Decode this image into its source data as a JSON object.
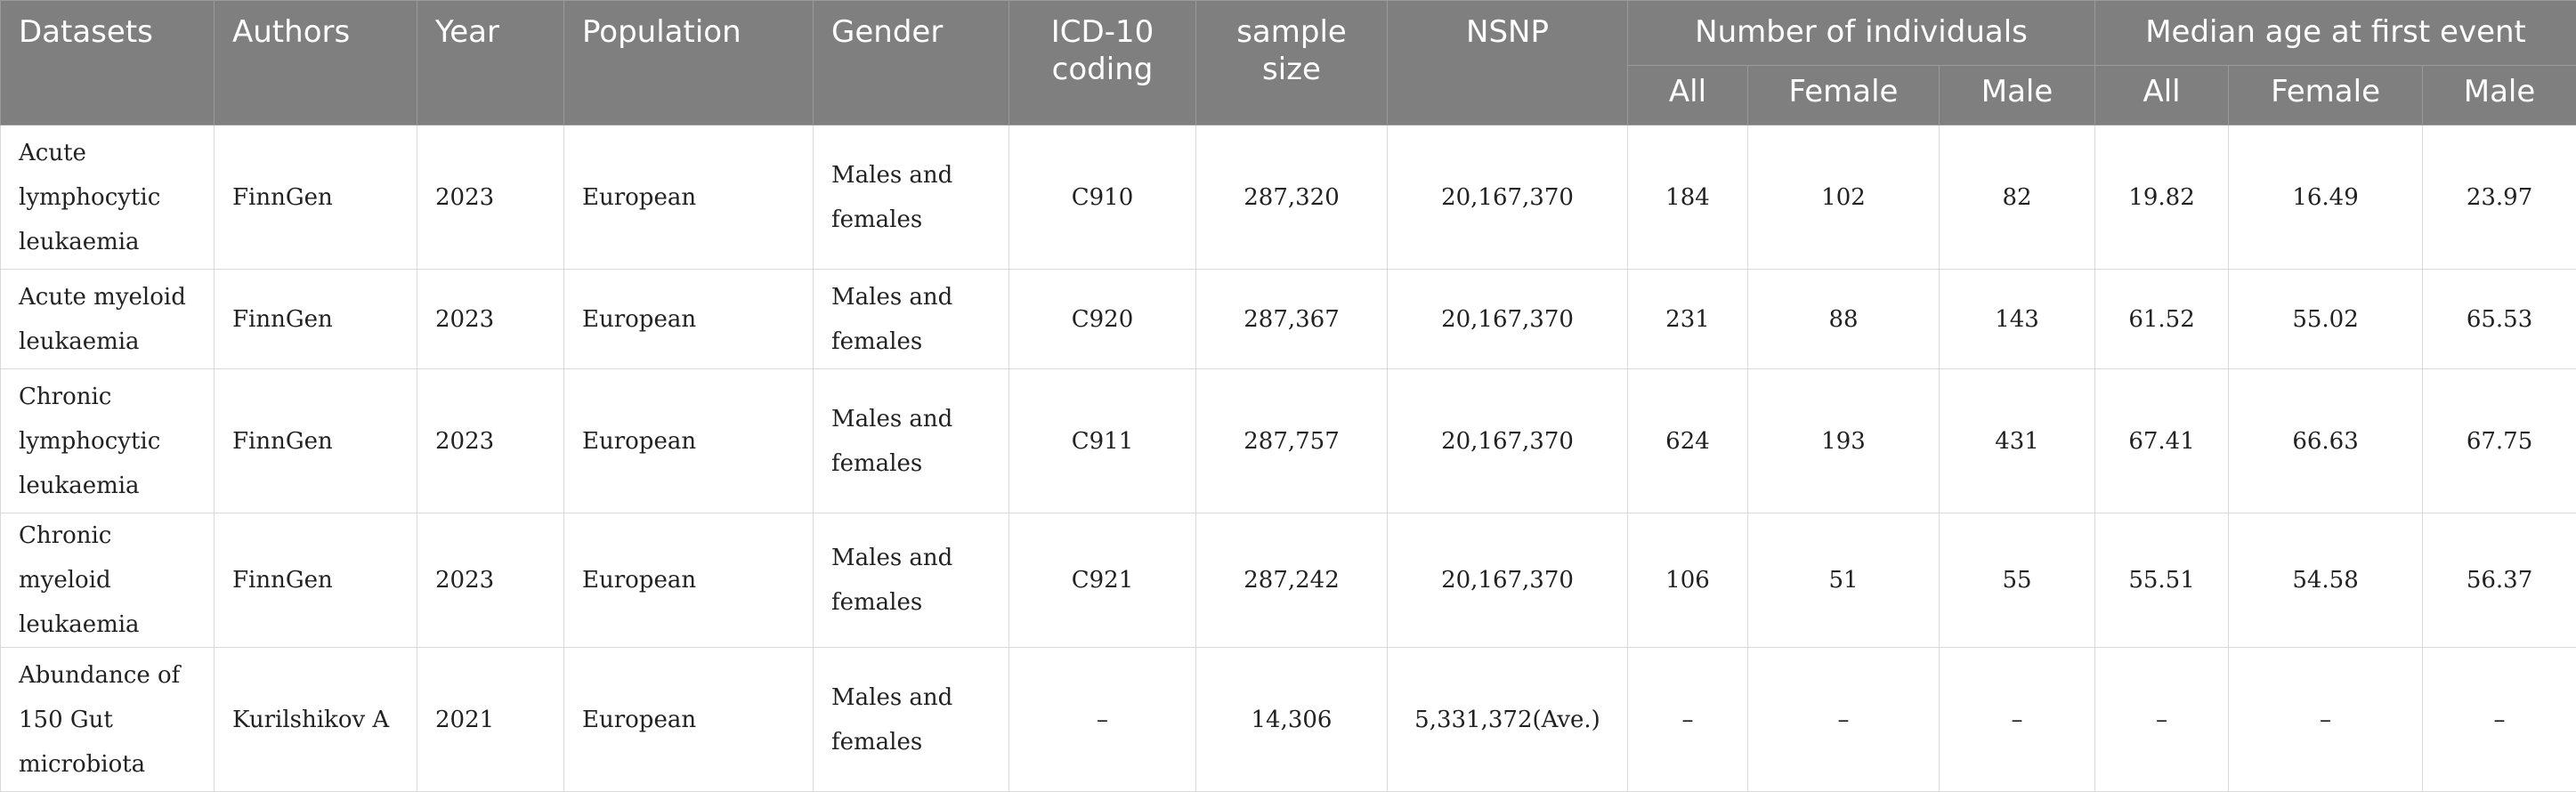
{
  "header": {
    "datasets": "Datasets",
    "authors": "Authors",
    "year": "Year",
    "population": "Population",
    "gender": "Gender",
    "icd": "ICD-10 coding",
    "sample_size": "sample size",
    "nsnp": "NSNP",
    "num_individuals": "Number of individuals",
    "median_age": "Median age at first event",
    "sub": {
      "all": "All",
      "female": "Female",
      "male": "Male"
    }
  },
  "rows": [
    {
      "dataset": "Acute lymphocytic leukaemia",
      "authors": "FinnGen",
      "year": "2023",
      "population": "European",
      "gender": "Males and females",
      "icd": "C910",
      "sample_size": "287,320",
      "nsnp": "20,167,370",
      "n_all": "184",
      "n_female": "102",
      "n_male": "82",
      "age_all": "19.82",
      "age_female": "16.49",
      "age_male": "23.97"
    },
    {
      "dataset": "Acute myeloid leukaemia",
      "authors": "FinnGen",
      "year": "2023",
      "population": "European",
      "gender": "Males and females",
      "icd": "C920",
      "sample_size": "287,367",
      "nsnp": "20,167,370",
      "n_all": "231",
      "n_female": "88",
      "n_male": "143",
      "age_all": "61.52",
      "age_female": "55.02",
      "age_male": "65.53"
    },
    {
      "dataset": "Chronic lymphocytic leukaemia",
      "authors": "FinnGen",
      "year": "2023",
      "population": "European",
      "gender": "Males and females",
      "icd": "C911",
      "sample_size": "287,757",
      "nsnp": "20,167,370",
      "n_all": "624",
      "n_female": "193",
      "n_male": "431",
      "age_all": "67.41",
      "age_female": "66.63",
      "age_male": "67.75"
    },
    {
      "dataset": "Chronic myeloid leukaemia",
      "authors": "FinnGen",
      "year": "2023",
      "population": "European",
      "gender": "Males and females",
      "icd": "C921",
      "sample_size": "287,242",
      "nsnp": "20,167,370",
      "n_all": "106",
      "n_female": "51",
      "n_male": "55",
      "age_all": "55.51",
      "age_female": "54.58",
      "age_male": "56.37"
    },
    {
      "dataset": "Abundance of 150 Gut microbiota",
      "authors": "Kurilshikov A",
      "year": "2021",
      "population": "European",
      "gender": "Males and females",
      "icd": "–",
      "sample_size": "14,306",
      "nsnp": "5,331,372(Ave.)",
      "n_all": "–",
      "n_female": "–",
      "n_male": "–",
      "age_all": "–",
      "age_female": "–",
      "age_male": "–"
    }
  ]
}
